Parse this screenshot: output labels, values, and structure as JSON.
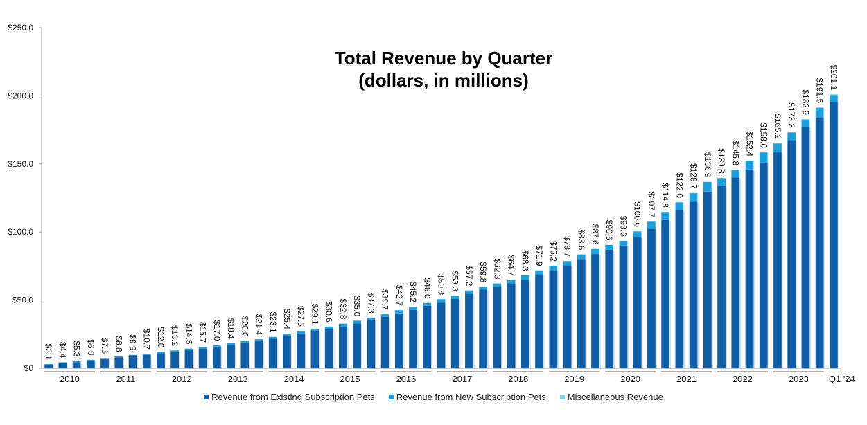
{
  "chart_data": {
    "type": "bar",
    "stacked": true,
    "title": "Total Revenue by Quarter",
    "subtitle": "(dollars, in millions)",
    "ylim": [
      0,
      250
    ],
    "yticks": [
      0,
      50,
      100,
      150,
      200,
      250
    ],
    "ytick_labels": [
      "$0",
      "$50.0",
      "$100.0",
      "$150.0",
      "$200.0",
      "$250.0"
    ],
    "year_labels": [
      "2010",
      "2011",
      "2012",
      "2013",
      "2014",
      "2015",
      "2016",
      "2017",
      "2018",
      "2019",
      "2020",
      "2021",
      "2022",
      "2023",
      "Q1 '24"
    ],
    "totals": [
      3.1,
      4.4,
      5.3,
      6.3,
      7.6,
      8.8,
      9.9,
      10.7,
      12.0,
      13.2,
      14.5,
      15.7,
      17.0,
      18.4,
      20.0,
      21.4,
      23.1,
      25.4,
      27.5,
      29.1,
      30.6,
      32.8,
      35.0,
      37.3,
      39.7,
      42.7,
      45.2,
      48.0,
      50.8,
      53.3,
      57.2,
      59.8,
      62.3,
      64.7,
      68.3,
      71.9,
      75.2,
      78.7,
      83.6,
      87.6,
      90.6,
      93.6,
      100.6,
      107.7,
      114.8,
      122.0,
      128.7,
      136.9,
      139.8,
      145.8,
      152.4,
      158.6,
      165.2,
      173.3,
      182.9,
      191.5,
      201.1
    ],
    "total_labels": [
      "$3.1",
      "$4.4",
      "$5.3",
      "$6.3",
      "$7.6",
      "$8.8",
      "$9.9",
      "$10.7",
      "$12.0",
      "$13.2",
      "$14.5",
      "$15.7",
      "$17.0",
      "$18.4",
      "$20.0",
      "$21.4",
      "$23.1",
      "$25.4",
      "$27.5",
      "$29.1",
      "$30.6",
      "$32.8",
      "$35.0",
      "$37.3",
      "$39.7",
      "$42.7",
      "$45.2",
      "$48.0",
      "$50.8",
      "$53.3",
      "$57.2",
      "$59.8",
      "$62.3",
      "$64.7",
      "$68.3",
      "$71.9",
      "$75.2",
      "$78.7",
      "$83.6",
      "$87.6",
      "$90.6",
      "$93.6",
      "$100.6",
      "$107.7",
      "$114.8",
      "$122.0",
      "$128.7",
      "$136.9",
      "$139.8",
      "$145.8",
      "$152.4",
      "$158.6",
      "$165.2",
      "$173.3",
      "$182.9",
      "$191.5",
      "$201.1"
    ],
    "series": [
      {
        "name": "Revenue from Existing Subscription Pets",
        "color": "#0f5ea8",
        "values": [
          2.5,
          3.6,
          4.5,
          5.3,
          6.8,
          7.9,
          8.9,
          9.7,
          10.9,
          11.9,
          13.2,
          14.4,
          15.8,
          17.0,
          18.6,
          20.1,
          21.7,
          23.8,
          25.6,
          27.6,
          28.8,
          30.5,
          32.9,
          35.5,
          37.7,
          40.2,
          42.8,
          45.9,
          48.2,
          51.0,
          54.6,
          57.7,
          59.6,
          62.3,
          65.0,
          68.9,
          72.0,
          75.5,
          80.2,
          83.8,
          86.9,
          90.1,
          96.0,
          102.5,
          108.8,
          116.0,
          122.3,
          129.7,
          133.9,
          140.0,
          145.9,
          151.1,
          158.5,
          167.4,
          177.0,
          184.3,
          195.5
        ]
      },
      {
        "name": "Revenue from New Subscription Pets",
        "color": "#1a9fdf",
        "values": [
          0.5,
          0.7,
          0.7,
          0.9,
          0.7,
          0.8,
          0.9,
          0.9,
          1.0,
          1.2,
          1.2,
          1.2,
          1.1,
          1.3,
          1.3,
          1.2,
          1.3,
          1.5,
          1.8,
          1.4,
          1.7,
          2.2,
          2.0,
          1.7,
          1.9,
          2.4,
          2.3,
          2.0,
          2.5,
          2.2,
          2.5,
          2.0,
          2.6,
          2.3,
          3.2,
          2.9,
          3.1,
          3.1,
          3.3,
          3.7,
          3.6,
          3.4,
          4.4,
          5.0,
          5.8,
          5.8,
          6.2,
          7.0,
          5.7,
          5.6,
          6.3,
          7.3,
          6.5,
          5.7,
          5.6,
          6.9,
          5.1
        ]
      },
      {
        "name": "Miscellaneous Revenue",
        "color": "#7fd8ea",
        "values": [
          0.1,
          0.1,
          0.1,
          0.1,
          0.1,
          0.1,
          0.1,
          0.1,
          0.1,
          0.1,
          0.1,
          0.1,
          0.1,
          0.1,
          0.1,
          0.1,
          0.1,
          0.1,
          0.1,
          0.1,
          0.1,
          0.1,
          0.1,
          0.1,
          0.1,
          0.1,
          0.1,
          0.1,
          0.1,
          0.1,
          0.1,
          0.1,
          0.1,
          0.1,
          0.1,
          0.1,
          0.1,
          0.1,
          0.1,
          0.1,
          0.1,
          0.1,
          0.2,
          0.2,
          0.2,
          0.2,
          0.2,
          0.2,
          0.2,
          0.2,
          0.2,
          0.2,
          0.2,
          0.2,
          0.3,
          0.3,
          0.5
        ]
      }
    ],
    "legend_position": "bottom"
  }
}
